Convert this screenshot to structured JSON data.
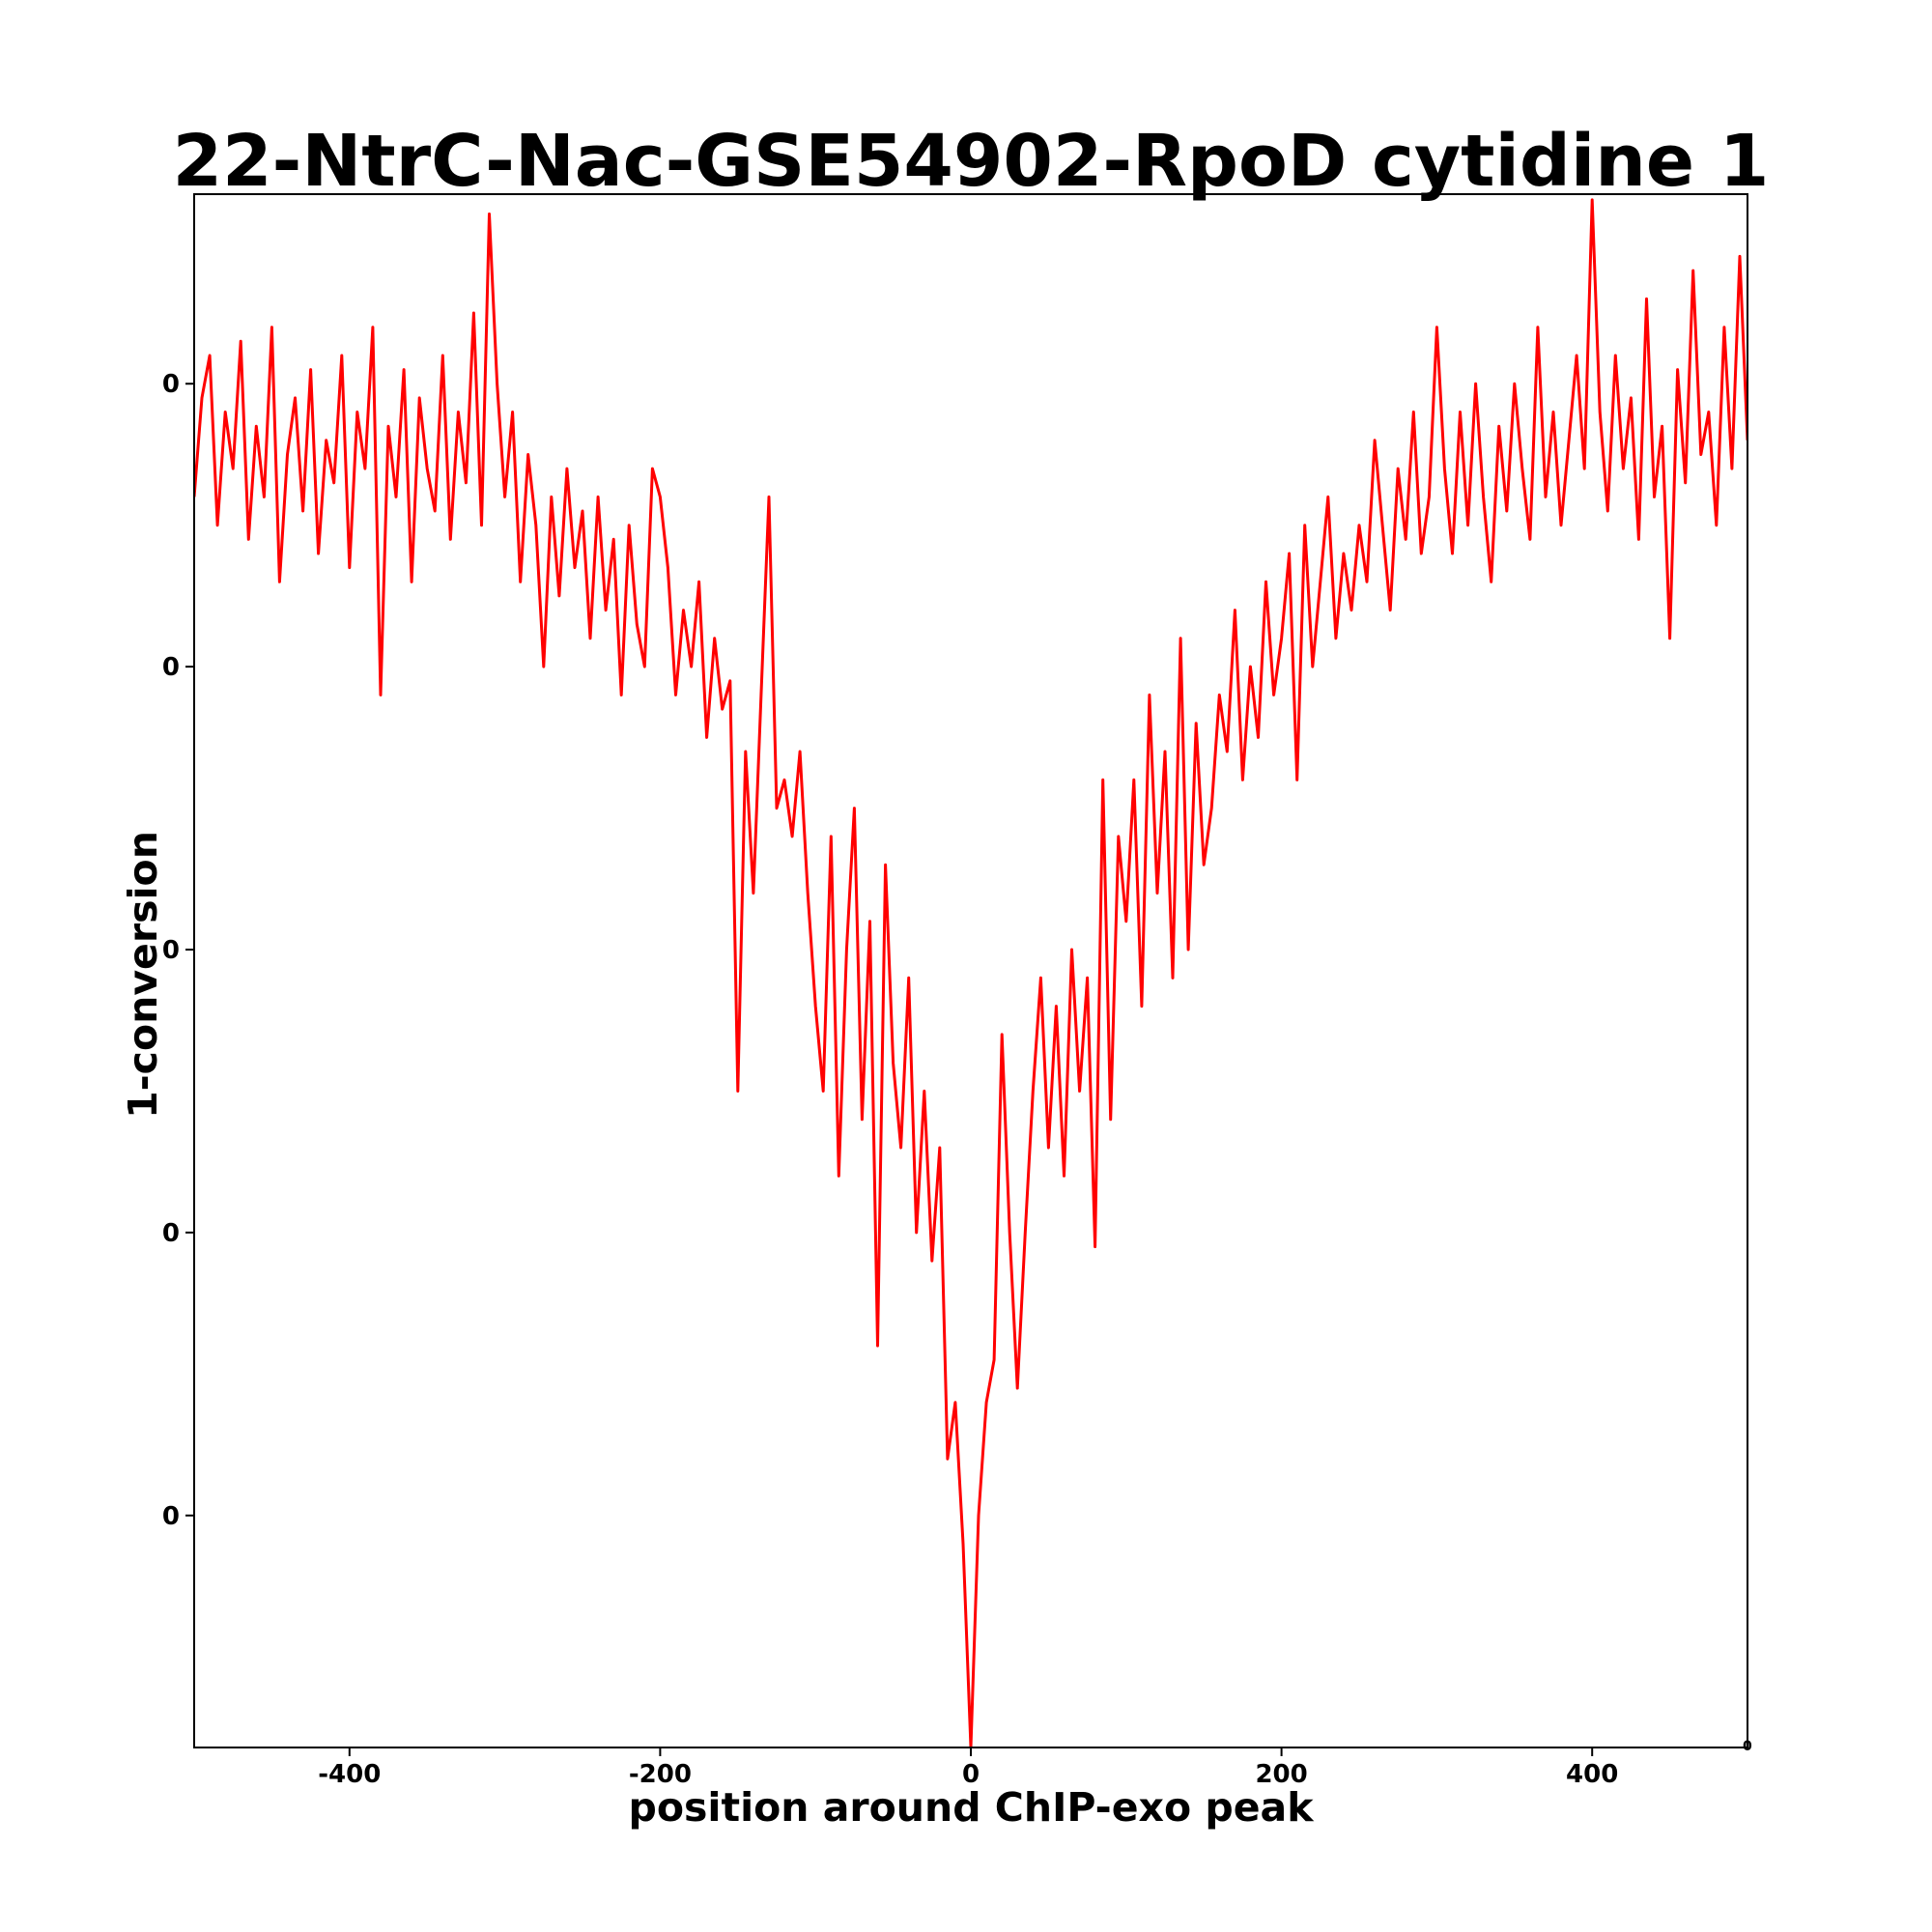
{
  "chart_data": {
    "type": "line",
    "title": "22-NtrC-Nac-GSE54902-RpoD cytidine 1",
    "xlabel": "position around ChIP-exo peak",
    "ylabel": "1-conversion",
    "xlim": [
      -500,
      500
    ],
    "ylim": [
      -0.82,
      4.67
    ],
    "xticks": [
      {
        "value": -400,
        "label": "-400"
      },
      {
        "value": -200,
        "label": "-200"
      },
      {
        "value": 0,
        "label": "0"
      },
      {
        "value": 200,
        "label": "200"
      },
      {
        "value": 400,
        "label": "400"
      }
    ],
    "yticks": [
      {
        "value": 0,
        "label": "0"
      },
      {
        "value": 1,
        "label": "0"
      },
      {
        "value": 2,
        "label": "0"
      },
      {
        "value": 3,
        "label": "0"
      },
      {
        "value": 4,
        "label": "0"
      }
    ],
    "offset_text": "0",
    "grid": false,
    "series": [
      {
        "name": "cytidine 1",
        "color": "#ff0000",
        "x_start": -500,
        "x_step": 5,
        "values": [
          3.6,
          3.95,
          4.1,
          3.5,
          3.9,
          3.7,
          4.15,
          3.45,
          3.85,
          3.6,
          4.2,
          3.3,
          3.75,
          3.95,
          3.55,
          4.05,
          3.4,
          3.8,
          3.65,
          4.1,
          3.35,
          3.9,
          3.7,
          4.2,
          2.9,
          3.85,
          3.6,
          4.05,
          3.3,
          3.95,
          3.7,
          3.55,
          4.1,
          3.45,
          3.9,
          3.65,
          4.25,
          3.5,
          4.6,
          4.0,
          3.6,
          3.9,
          3.3,
          3.75,
          3.5,
          3.0,
          3.6,
          3.25,
          3.7,
          3.35,
          3.55,
          3.1,
          3.6,
          3.2,
          3.45,
          2.9,
          3.5,
          3.15,
          3.0,
          3.7,
          3.6,
          3.35,
          2.9,
          3.2,
          3.0,
          3.3,
          2.75,
          3.1,
          2.85,
          2.95,
          1.5,
          2.7,
          2.2,
          2.9,
          3.6,
          2.5,
          2.6,
          2.4,
          2.7,
          2.2,
          1.8,
          1.5,
          2.4,
          1.2,
          2.0,
          2.5,
          1.4,
          2.1,
          0.6,
          2.3,
          1.6,
          1.3,
          1.9,
          1.0,
          1.5,
          0.9,
          1.3,
          0.2,
          0.4,
          -0.1,
          -0.82,
          0.0,
          0.4,
          0.55,
          1.7,
          1.0,
          0.45,
          1.0,
          1.5,
          1.9,
          1.3,
          1.8,
          1.2,
          2.0,
          1.5,
          1.9,
          0.95,
          2.6,
          1.4,
          2.4,
          2.1,
          2.6,
          1.8,
          2.9,
          2.2,
          2.7,
          1.9,
          3.1,
          2.0,
          2.8,
          2.3,
          2.5,
          2.9,
          2.7,
          3.2,
          2.6,
          3.0,
          2.75,
          3.3,
          2.9,
          3.1,
          3.4,
          2.6,
          3.5,
          3.0,
          3.3,
          3.6,
          3.1,
          3.4,
          3.2,
          3.5,
          3.3,
          3.8,
          3.5,
          3.2,
          3.7,
          3.45,
          3.9,
          3.4,
          3.6,
          4.2,
          3.7,
          3.4,
          3.9,
          3.5,
          4.0,
          3.6,
          3.3,
          3.85,
          3.55,
          4.0,
          3.7,
          3.45,
          4.2,
          3.6,
          3.9,
          3.5,
          3.8,
          4.1,
          3.7,
          4.65,
          3.9,
          3.55,
          4.1,
          3.7,
          3.95,
          3.45,
          4.3,
          3.6,
          3.85,
          3.1,
          4.05,
          3.65,
          4.4,
          3.75,
          3.9,
          3.5,
          4.2,
          3.7,
          4.45,
          3.8
        ]
      }
    ]
  }
}
